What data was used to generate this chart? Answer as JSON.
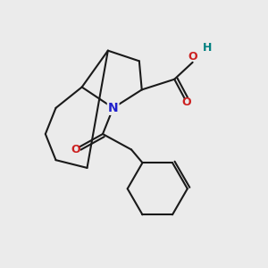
{
  "background_color": "#ebebeb",
  "bond_color": "#1a1a1a",
  "N_color": "#2020cc",
  "O_color": "#cc2020",
  "H_color": "#008080",
  "line_width": 1.5,
  "figsize": [
    3.0,
    3.0
  ],
  "dpi": 100,
  "xlim": [
    0,
    10
  ],
  "ylim": [
    0,
    10
  ]
}
